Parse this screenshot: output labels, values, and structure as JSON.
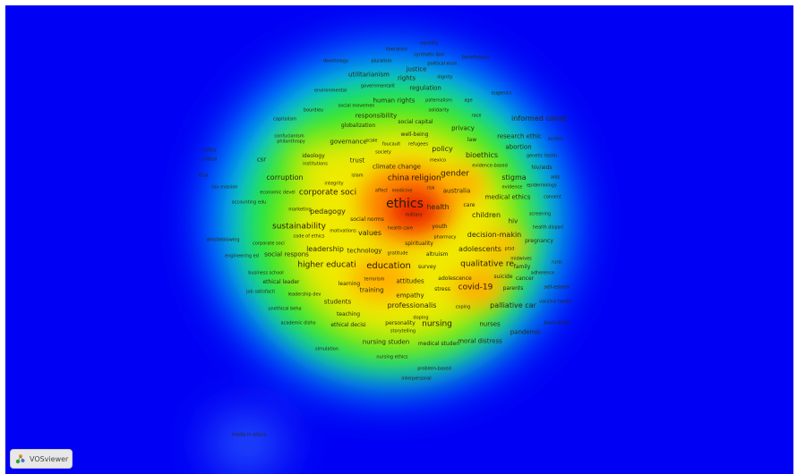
{
  "app": {
    "brand_label": "VOSviewer"
  },
  "colors": {
    "background": "#0000f4",
    "cold": "#00c8ff",
    "mid": "#28e828",
    "warm": "#f0ea00",
    "hot": "#ff6000",
    "core": "#e82000"
  },
  "terms": [
    {
      "id": "equality",
      "label": "equality",
      "size": 5
    },
    {
      "id": "liberalism",
      "label": "liberalism",
      "size": 5
    },
    {
      "id": "synthetic-biol",
      "label": "synthetic biol",
      "size": 5
    },
    {
      "id": "beneficence",
      "label": "beneficence",
      "size": 5
    },
    {
      "id": "deontology",
      "label": "deontology",
      "size": 5
    },
    {
      "id": "pluralism",
      "label": "pluralism",
      "size": 5
    },
    {
      "id": "political-econ",
      "label": "political econ",
      "size": 5
    },
    {
      "id": "justice",
      "label": "justice",
      "size": 7
    },
    {
      "id": "utilitarianism",
      "label": "utilitarianism",
      "size": 7
    },
    {
      "id": "rights",
      "label": "rights",
      "size": 7
    },
    {
      "id": "dignity",
      "label": "dignity",
      "size": 5
    },
    {
      "id": "environmental",
      "label": "environmental",
      "size": 5
    },
    {
      "id": "governmentalit",
      "label": "governmentalit",
      "size": 5
    },
    {
      "id": "regulation",
      "label": "regulation",
      "size": 7
    },
    {
      "id": "eugenics",
      "label": "eugenics",
      "size": 5
    },
    {
      "id": "human-rights",
      "label": "human rights",
      "size": 7
    },
    {
      "id": "paternalism",
      "label": "paternalism",
      "size": 5
    },
    {
      "id": "age",
      "label": "age",
      "size": 5
    },
    {
      "id": "social-movemen",
      "label": "social movemen",
      "size": 5
    },
    {
      "id": "bourdieu",
      "label": "bourdieu",
      "size": 5
    },
    {
      "id": "solidarity",
      "label": "solidarity",
      "size": 5
    },
    {
      "id": "capitalism",
      "label": "capitalism",
      "size": 5
    },
    {
      "id": "responsibility",
      "label": "responsibility",
      "size": 7
    },
    {
      "id": "race",
      "label": "race",
      "size": 5
    },
    {
      "id": "informed-conse",
      "label": "informed conse",
      "size": 8
    },
    {
      "id": "social-capital",
      "label": "social capital",
      "size": 6
    },
    {
      "id": "globalization",
      "label": "globalization",
      "size": 6
    },
    {
      "id": "privacy",
      "label": "privacy",
      "size": 7
    },
    {
      "id": "confucianism",
      "label": "confucianism",
      "size": 5
    },
    {
      "id": "philanthropy",
      "label": "philanthropy",
      "size": 5
    },
    {
      "id": "well-being",
      "label": "well-being",
      "size": 6
    },
    {
      "id": "governance",
      "label": "governance",
      "size": 7
    },
    {
      "id": "scale",
      "label": "scale",
      "size": 5
    },
    {
      "id": "foucault",
      "label": "foucault",
      "size": 5
    },
    {
      "id": "refugees",
      "label": "refugees",
      "size": 5
    },
    {
      "id": "law",
      "label": "law",
      "size": 6
    },
    {
      "id": "research-ethic",
      "label": "research ethic",
      "size": 7
    },
    {
      "id": "access",
      "label": "access",
      "size": 5
    },
    {
      "id": "critica",
      "label": "critica",
      "size": 5
    },
    {
      "id": "policy",
      "label": "policy",
      "size": 8
    },
    {
      "id": "abortion",
      "label": "abortion",
      "size": 7
    },
    {
      "id": "critical",
      "label": "critical",
      "size": 5
    },
    {
      "id": "csr",
      "label": "csr",
      "size": 7
    },
    {
      "id": "ideology",
      "label": "ideology",
      "size": 6
    },
    {
      "id": "society",
      "label": "society",
      "size": 5
    },
    {
      "id": "bioethics",
      "label": "bioethics",
      "size": 8
    },
    {
      "id": "genetic-testin",
      "label": "genetic testin",
      "size": 5
    },
    {
      "id": "institutions",
      "label": "institutions",
      "size": 5
    },
    {
      "id": "trust",
      "label": "trust",
      "size": 7
    },
    {
      "id": "mexico",
      "label": "mexico",
      "size": 5
    },
    {
      "id": "climate-change",
      "label": "climate change",
      "size": 7
    },
    {
      "id": "evidence-based",
      "label": "evidence-based",
      "size": 5
    },
    {
      "id": "hiv-aids",
      "label": "hiv/aids",
      "size": 6
    },
    {
      "id": "itica",
      "label": "itica",
      "size": 5
    },
    {
      "id": "islam",
      "label": "islam",
      "size": 5
    },
    {
      "id": "corruption",
      "label": "corruption",
      "size": 8
    },
    {
      "id": "china",
      "label": "china",
      "size": 9
    },
    {
      "id": "religion",
      "label": "religion",
      "size": 9
    },
    {
      "id": "gender",
      "label": "gender",
      "size": 9
    },
    {
      "id": "stigma",
      "label": "stigma",
      "size": 8
    },
    {
      "id": "aids",
      "label": "aids",
      "size": 5
    },
    {
      "id": "integrity",
      "label": "integrity",
      "size": 5
    },
    {
      "id": "evidence",
      "label": "evidence",
      "size": 5
    },
    {
      "id": "epidemiology",
      "label": "epidemiology",
      "size": 5
    },
    {
      "id": "tax-evasion",
      "label": "tax evasion",
      "size": 5
    },
    {
      "id": "economic-devel",
      "label": "economic devel",
      "size": 5
    },
    {
      "id": "corporate-soci",
      "label": "corporate soci",
      "size": 9
    },
    {
      "id": "affect",
      "label": "affect",
      "size": 5
    },
    {
      "id": "medicine",
      "label": "medicine",
      "size": 5
    },
    {
      "id": "risk",
      "label": "risk",
      "size": 5
    },
    {
      "id": "australia",
      "label": "australia",
      "size": 7
    },
    {
      "id": "medical-ethics",
      "label": "medical ethics",
      "size": 7
    },
    {
      "id": "accounting-edu",
      "label": "accounting edu",
      "size": 5
    },
    {
      "id": "ethics",
      "label": "ethics",
      "size": 14
    },
    {
      "id": "consent",
      "label": "consent",
      "size": 5
    },
    {
      "id": "marketing",
      "label": "marketing",
      "size": 5
    },
    {
      "id": "health",
      "label": "health",
      "size": 8
    },
    {
      "id": "care",
      "label": "care",
      "size": 6
    },
    {
      "id": "pedagogy",
      "label": "pedagogy",
      "size": 8
    },
    {
      "id": "military",
      "label": "military",
      "size": 5
    },
    {
      "id": "children",
      "label": "children",
      "size": 8
    },
    {
      "id": "screening",
      "label": "screening",
      "size": 5
    },
    {
      "id": "social-norms",
      "label": "social norms",
      "size": 6
    },
    {
      "id": "hiv",
      "label": "hiv",
      "size": 7
    },
    {
      "id": "sustainability",
      "label": "sustainability",
      "size": 9
    },
    {
      "id": "health-care",
      "label": "health care",
      "size": 5
    },
    {
      "id": "youth",
      "label": "youth",
      "size": 6
    },
    {
      "id": "health-dispari",
      "label": "health dispari",
      "size": 5
    },
    {
      "id": "motivations",
      "label": "motivations",
      "size": 5
    },
    {
      "id": "values",
      "label": "values",
      "size": 8
    },
    {
      "id": "code-of-ethics",
      "label": "code of ethics",
      "size": 5
    },
    {
      "id": "pharmacy",
      "label": "pharmacy",
      "size": 5
    },
    {
      "id": "decision-makin",
      "label": "decision-makin",
      "size": 8
    },
    {
      "id": "whistleblowing",
      "label": "whistleblowing",
      "size": 5
    },
    {
      "id": "corporate-soci-2",
      "label": "corporate soci",
      "size": 5
    },
    {
      "id": "spirituality",
      "label": "spirituality",
      "size": 6
    },
    {
      "id": "pregnancy",
      "label": "pregnancy",
      "size": 6
    },
    {
      "id": "leadership",
      "label": "leadership",
      "size": 8
    },
    {
      "id": "adolescents",
      "label": "adolescents",
      "size": 8
    },
    {
      "id": "ptsd",
      "label": "ptsd",
      "size": 5
    },
    {
      "id": "engineering-ed",
      "label": "engineering ed",
      "size": 5
    },
    {
      "id": "social-respons",
      "label": "social respons",
      "size": 7
    },
    {
      "id": "technology",
      "label": "technology",
      "size": 7
    },
    {
      "id": "gratitude",
      "label": "gratitude",
      "size": 5
    },
    {
      "id": "altruism",
      "label": "altruism",
      "size": 6
    },
    {
      "id": "midwives",
      "label": "midwives",
      "size": 5
    },
    {
      "id": "rural",
      "label": "rural",
      "size": 5
    },
    {
      "id": "higher-educati",
      "label": "higher educati",
      "size": 9
    },
    {
      "id": "education",
      "label": "education",
      "size": 10
    },
    {
      "id": "survey",
      "label": "survey",
      "size": 6
    },
    {
      "id": "qualitative-re",
      "label": "qualitative re",
      "size": 9
    },
    {
      "id": "family",
      "label": "family",
      "size": 6
    },
    {
      "id": "business-school",
      "label": "business school",
      "size": 5
    },
    {
      "id": "adherence",
      "label": "adherence",
      "size": 5
    },
    {
      "id": "ethical-leader",
      "label": "ethical leader",
      "size": 6
    },
    {
      "id": "terrorism",
      "label": "terrorism",
      "size": 5
    },
    {
      "id": "attitudes",
      "label": "attitudes",
      "size": 7
    },
    {
      "id": "adolescence",
      "label": "adolescence",
      "size": 6
    },
    {
      "id": "suicide",
      "label": "suicide",
      "size": 6
    },
    {
      "id": "cancer",
      "label": "cancer",
      "size": 6
    },
    {
      "id": "learning",
      "label": "learning",
      "size": 6
    },
    {
      "id": "job-satisfacti",
      "label": "job satisfacti",
      "size": 5
    },
    {
      "id": "training",
      "label": "training",
      "size": 7
    },
    {
      "id": "stress",
      "label": "stress",
      "size": 6
    },
    {
      "id": "covid-19",
      "label": "covid-19",
      "size": 9
    },
    {
      "id": "parents",
      "label": "parents",
      "size": 6
    },
    {
      "id": "self-esteem",
      "label": "self-esteem",
      "size": 5
    },
    {
      "id": "leadership-dev",
      "label": "leadership dev",
      "size": 5
    },
    {
      "id": "empathy",
      "label": "empathy",
      "size": 7
    },
    {
      "id": "students",
      "label": "students",
      "size": 7
    },
    {
      "id": "vaccine-hesita",
      "label": "vaccine hesita",
      "size": 5
    },
    {
      "id": "unethical-beha",
      "label": "unethical beha",
      "size": 5
    },
    {
      "id": "professionalis",
      "label": "professionalis",
      "size": 8
    },
    {
      "id": "coping",
      "label": "coping",
      "size": 5
    },
    {
      "id": "palliative-car",
      "label": "palliative car",
      "size": 8
    },
    {
      "id": "teaching",
      "label": "teaching",
      "size": 6
    },
    {
      "id": "doping",
      "label": "doping",
      "size": 5
    },
    {
      "id": "academic-disho",
      "label": "academic disho",
      "size": 5
    },
    {
      "id": "ethical-decisi",
      "label": "ethical decisi",
      "size": 6
    },
    {
      "id": "personality",
      "label": "personality",
      "size": 6
    },
    {
      "id": "nursing",
      "label": "nursing",
      "size": 9
    },
    {
      "id": "nurses",
      "label": "nurses",
      "size": 7
    },
    {
      "id": "brain-death",
      "label": "brain death",
      "size": 5
    },
    {
      "id": "storytelling",
      "label": "storytelling",
      "size": 5
    },
    {
      "id": "pandemic",
      "label": "pandemic",
      "size": 7
    },
    {
      "id": "nursing-studen",
      "label": "nursing studen",
      "size": 7
    },
    {
      "id": "medical-studen",
      "label": "medical studen",
      "size": 6
    },
    {
      "id": "moral-distress",
      "label": "moral distress",
      "size": 7
    },
    {
      "id": "simulation",
      "label": "simulation",
      "size": 5
    },
    {
      "id": "nursing-ethics",
      "label": "nursing ethics",
      "size": 5
    },
    {
      "id": "problem-based",
      "label": "problem-based",
      "size": 5
    },
    {
      "id": "interpersonal",
      "label": "interpersonal",
      "size": 5
    },
    {
      "id": "media-in-educa",
      "label": "media in educa",
      "size": 5
    }
  ]
}
